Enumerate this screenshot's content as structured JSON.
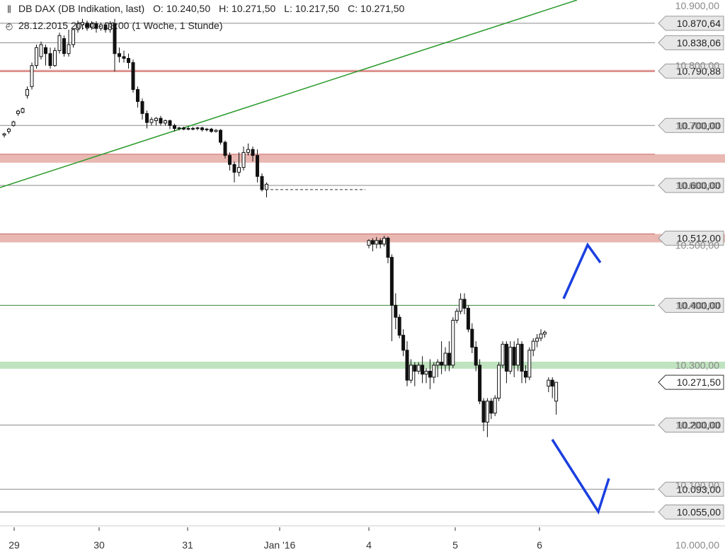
{
  "header": {
    "icon": "candlestick-icon",
    "instrument": "DB DAX (DB Indikation, last)",
    "open": "O: 10.240,50",
    "high": "H: 10.271,50",
    "low": "L: 10.217,50",
    "close": "C: 10.271,50",
    "period_icon": "clock-icon",
    "period": "28.12.2015 20:00 - 08:00 (1 Woche, 1 Stunde)"
  },
  "chart_data": {
    "type": "candlestick",
    "title": "DB DAX (DB Indikation, last)",
    "x_ticks": [
      "29",
      "30",
      "31",
      "Jan '16",
      "4",
      "5",
      "6"
    ],
    "y_ticks": [
      "10.900,00",
      "10.800,00",
      "10.700,00",
      "10.600,00",
      "10.500,00",
      "10.400,00",
      "10.300,00",
      "10.200,00",
      "10.100,00",
      "10.000,00"
    ],
    "ylim": [
      10000,
      10900
    ],
    "grid": false,
    "levels": [
      {
        "value": 10870.64,
        "label": "10.870,64",
        "style": "line"
      },
      {
        "value": 10838.06,
        "label": "10.838,06",
        "style": "line"
      },
      {
        "value": 10790.88,
        "label": "10.790,88",
        "style": "red-line"
      },
      {
        "value": 10700.0,
        "label": "10.700,00",
        "style": "line"
      },
      {
        "value": 10645.0,
        "label": "",
        "style": "red-band"
      },
      {
        "value": 10600.0,
        "label": "10.600,00",
        "style": "line"
      },
      {
        "value": 10512.0,
        "label": "10.512,00",
        "style": "red-band"
      },
      {
        "value": 10400.0,
        "label": "10.400,00",
        "style": "green-line"
      },
      {
        "value": 10300.0,
        "label": "",
        "style": "green-band"
      },
      {
        "value": 10200.0,
        "label": "10.200,00",
        "style": "line"
      },
      {
        "value": 10093.0,
        "label": "10.093,00",
        "style": "line"
      },
      {
        "value": 10055.0,
        "label": "10.055,00",
        "style": "line"
      }
    ],
    "last_price": {
      "value": 10271.5,
      "label": "10.271,50"
    },
    "trendline": {
      "color": "#2a9a2a"
    },
    "arrows": {
      "color": "#1a3fe0"
    },
    "colors": {
      "up": "#ffffff",
      "down": "#111111",
      "wick": "#111111"
    },
    "candles": [
      [
        10684,
        10686,
        10680,
        10688
      ],
      [
        10690,
        10694,
        10686,
        10696
      ],
      [
        10700,
        10706,
        10698,
        10708
      ],
      [
        10720,
        10724,
        10716,
        10726
      ],
      [
        10722,
        10728,
        10720,
        10730
      ],
      [
        10750,
        10760,
        10745,
        10765
      ],
      [
        10765,
        10800,
        10760,
        10805
      ],
      [
        10800,
        10830,
        10795,
        10835
      ],
      [
        10815,
        10835,
        10810,
        10840
      ],
      [
        10830,
        10820,
        10800,
        10835
      ],
      [
        10820,
        10800,
        10795,
        10830
      ],
      [
        10800,
        10825,
        10798,
        10830
      ],
      [
        10825,
        10850,
        10820,
        10855
      ],
      [
        10845,
        10820,
        10815,
        10850
      ],
      [
        10820,
        10835,
        10815,
        10860
      ],
      [
        10835,
        10860,
        10830,
        10862
      ],
      [
        10860,
        10870,
        10855,
        10875
      ],
      [
        10868,
        10872,
        10860,
        10878
      ],
      [
        10870,
        10864,
        10858,
        10875
      ],
      [
        10864,
        10870,
        10860,
        10874
      ],
      [
        10870,
        10862,
        10855,
        10874
      ],
      [
        10862,
        10868,
        10858,
        10872
      ],
      [
        10868,
        10860,
        10855,
        10872
      ],
      [
        10860,
        10870,
        10855,
        10874
      ],
      [
        10870,
        10820,
        10790,
        10878
      ],
      [
        10820,
        10815,
        10805,
        10830
      ],
      [
        10815,
        10812,
        10805,
        10825
      ],
      [
        10812,
        10805,
        10795,
        10820
      ],
      [
        10805,
        10760,
        10755,
        10810
      ],
      [
        10760,
        10740,
        10730,
        10765
      ],
      [
        10740,
        10720,
        10710,
        10745
      ],
      [
        10720,
        10705,
        10695,
        10725
      ],
      [
        10705,
        10710,
        10700,
        10714
      ],
      [
        10708,
        10712,
        10700,
        10714
      ],
      [
        10712,
        10704,
        10700,
        10716
      ],
      [
        10704,
        10708,
        10700,
        10710
      ],
      [
        10708,
        10700,
        10694,
        10710
      ],
      [
        10700,
        10695,
        10690,
        10703
      ],
      [
        10695,
        10696,
        10692,
        10698
      ],
      [
        10696,
        10694,
        10692,
        10698
      ],
      [
        10694,
        10695,
        10692,
        10698
      ],
      [
        10695,
        10695,
        10692,
        10698
      ],
      [
        10695,
        10696,
        10692,
        10698
      ],
      [
        10696,
        10693,
        10690,
        10698
      ],
      [
        10693,
        10694,
        10690,
        10696
      ],
      [
        10694,
        10690,
        10688,
        10696
      ],
      [
        10690,
        10692,
        10688,
        10694
      ],
      [
        10692,
        10672,
        10668,
        10694
      ],
      [
        10672,
        10650,
        10645,
        10675
      ],
      [
        10650,
        10635,
        10625,
        10655
      ],
      [
        10635,
        10622,
        10605,
        10640
      ],
      [
        10622,
        10630,
        10615,
        10655
      ],
      [
        10630,
        10655,
        10625,
        10665
      ],
      [
        10655,
        10660,
        10650,
        10670
      ],
      [
        10660,
        10650,
        10640,
        10665
      ],
      [
        10650,
        10615,
        10605,
        10660
      ],
      [
        10615,
        10593,
        10590,
        10620
      ],
      [
        10593,
        10602,
        10580,
        10605
      ],
      [
        10500,
        10508,
        10495,
        10510
      ],
      [
        10508,
        10502,
        10490,
        10512
      ],
      [
        10502,
        10508,
        10495,
        10514
      ],
      [
        10508,
        10502,
        10495,
        10512
      ],
      [
        10502,
        10512,
        10498,
        10516
      ],
      [
        10512,
        10480,
        10470,
        10515
      ],
      [
        10480,
        10400,
        10340,
        10485
      ],
      [
        10400,
        10380,
        10360,
        10420
      ],
      [
        10380,
        10350,
        10345,
        10385
      ],
      [
        10350,
        10325,
        10315,
        10360
      ],
      [
        10325,
        10275,
        10265,
        10340
      ],
      [
        10275,
        10300,
        10270,
        10310
      ],
      [
        10300,
        10290,
        10265,
        10305
      ],
      [
        10290,
        10300,
        10285,
        10305
      ],
      [
        10300,
        10285,
        10270,
        10315
      ],
      [
        10285,
        10290,
        10270,
        10295
      ],
      [
        10290,
        10280,
        10260,
        10310
      ],
      [
        10280,
        10300,
        10270,
        10305
      ],
      [
        10300,
        10305,
        10280,
        10310
      ],
      [
        10305,
        10300,
        10285,
        10340
      ],
      [
        10300,
        10320,
        10290,
        10330
      ],
      [
        10320,
        10300,
        10290,
        10340
      ],
      [
        10300,
        10375,
        10295,
        10380
      ],
      [
        10375,
        10390,
        10370,
        10395
      ],
      [
        10390,
        10410,
        10385,
        10420
      ],
      [
        10410,
        10395,
        10385,
        10420
      ],
      [
        10395,
        10360,
        10355,
        10400
      ],
      [
        10360,
        10330,
        10320,
        10370
      ],
      [
        10330,
        10300,
        10290,
        10340
      ],
      [
        10300,
        10240,
        10235,
        10310
      ],
      [
        10240,
        10205,
        10190,
        10245
      ],
      [
        10205,
        10240,
        10180,
        10245
      ],
      [
        10240,
        10220,
        10210,
        10245
      ],
      [
        10220,
        10245,
        10215,
        10250
      ],
      [
        10245,
        10300,
        10240,
        10305
      ],
      [
        10300,
        10335,
        10295,
        10340
      ],
      [
        10335,
        10290,
        10270,
        10340
      ],
      [
        10290,
        10330,
        10285,
        10340
      ],
      [
        10330,
        10300,
        10280,
        10340
      ],
      [
        10300,
        10335,
        10290,
        10345
      ],
      [
        10335,
        10290,
        10270,
        10340
      ],
      [
        10290,
        10280,
        10270,
        10300
      ],
      [
        10280,
        10325,
        10275,
        10330
      ],
      [
        10325,
        10340,
        10315,
        10345
      ],
      [
        10340,
        10345,
        10330,
        10352
      ],
      [
        10345,
        10352,
        10340,
        10360
      ],
      [
        10352,
        10355,
        10346,
        10358
      ],
      [
        10265,
        10275,
        10255,
        10280
      ],
      [
        10275,
        10265,
        10245,
        10280
      ],
      [
        10240,
        10271.5,
        10217.5,
        10271.5
      ]
    ]
  }
}
